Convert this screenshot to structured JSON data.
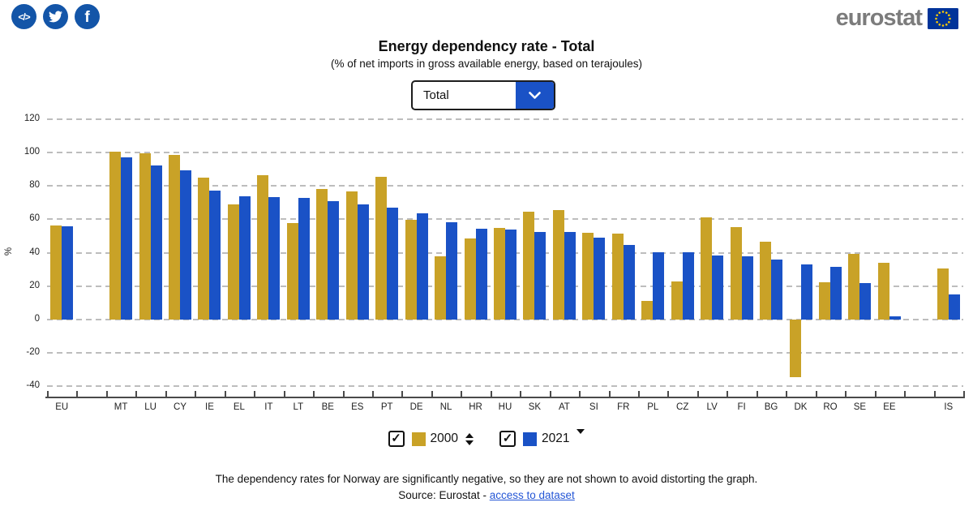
{
  "header": {
    "logo_text": "eurostat",
    "social_icons": {
      "code_glyph": "</>",
      "facebook_glyph": "f"
    }
  },
  "title": "Energy dependency rate - Total",
  "subtitle": "(% of net imports in gross available energy, based on terajoules)",
  "dropdown": {
    "value": "Total"
  },
  "chart_data": {
    "type": "bar",
    "title": "Energy dependency rate - Total",
    "subtitle": "(% of net imports in gross available energy, based on terajoules)",
    "xlabel": "",
    "ylabel": "%",
    "ylim": [
      -40,
      120
    ],
    "ytick_step": 20,
    "grid": "dashed-horizontal",
    "legend_position": "bottom",
    "categories": [
      "EU",
      "",
      "MT",
      "LU",
      "CY",
      "IE",
      "EL",
      "IT",
      "LT",
      "BE",
      "ES",
      "PT",
      "DE",
      "NL",
      "HR",
      "HU",
      "SK",
      "AT",
      "SI",
      "FR",
      "PL",
      "CZ",
      "LV",
      "FI",
      "BG",
      "DK",
      "RO",
      "SE",
      "EE",
      "",
      "IS"
    ],
    "series": [
      {
        "name": "2000",
        "color": "#C9A227",
        "values": [
          56.3,
          null,
          100.3,
          99.5,
          98.5,
          85.0,
          69.0,
          86.3,
          58.0,
          78.0,
          76.6,
          85.3,
          59.5,
          38.0,
          48.7,
          55.0,
          64.8,
          65.5,
          51.8,
          51.4,
          11.0,
          22.9,
          61.0,
          55.4,
          46.4,
          -34.5,
          22.1,
          39.4,
          34.1,
          null,
          30.7
        ]
      },
      {
        "name": "2021",
        "color": "#1A52C6",
        "values": [
          55.6,
          null,
          96.9,
          92.4,
          89.5,
          77.0,
          73.6,
          73.4,
          72.8,
          70.7,
          69.0,
          67.0,
          63.7,
          58.2,
          54.5,
          54.0,
          52.5,
          52.2,
          49.0,
          44.5,
          40.5,
          40.2,
          38.4,
          37.9,
          36.0,
          32.8,
          31.7,
          21.8,
          1.8,
          null,
          15.2
        ]
      }
    ]
  },
  "legend": {
    "check_glyph": "✓",
    "items": [
      {
        "label": "2000",
        "checked": true,
        "color": "#C9A227",
        "sort_icon": "sort-both"
      },
      {
        "label": "2021",
        "checked": true,
        "color": "#1A52C6",
        "sort_icon": "sort-desc"
      }
    ]
  },
  "footer": {
    "note": "The dependency rates for Norway are significantly negative, so they are not shown to avoid distorting the graph.",
    "source_prefix": "Source: Eurostat - ",
    "source_link_text": "access to dataset"
  },
  "colors": {
    "bar_2000": "#C9A227",
    "bar_2021": "#1A52C6",
    "social_blue": "#1355A8",
    "flag_blue": "#003399",
    "star_yellow": "#FFCC00",
    "link_blue": "#2456D6",
    "logo_gray": "#7C7C7C",
    "gridline_gray": "#bdbdbd"
  }
}
